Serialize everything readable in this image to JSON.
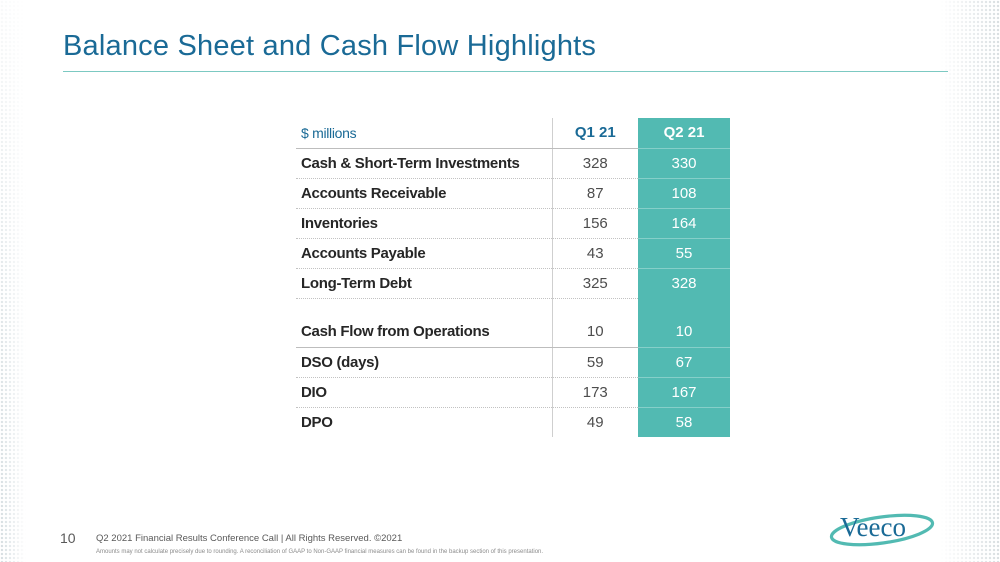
{
  "slide": {
    "title": "Balance Sheet and Cash Flow Highlights",
    "page_number": "10",
    "footer": "Q2 2021 Financial Results Conference Call  |  All Rights Reserved. ©2021",
    "footnote": "Amounts may not calculate precisely due to rounding.  A reconciliation of GAAP to Non-GAAP financial measures can be found in the backup section of this presentation.",
    "logo_text": "Veeco"
  },
  "table": {
    "unit_label": "$ millions",
    "columns": [
      "Q1 21",
      "Q2 21"
    ],
    "rows": [
      {
        "label": "Cash & Short-Term Investments",
        "q1": "328",
        "q2": "330"
      },
      {
        "label": "Accounts Receivable",
        "q1": "87",
        "q2": "108"
      },
      {
        "label": "Inventories",
        "q1": "156",
        "q2": "164"
      },
      {
        "label": "Accounts Payable",
        "q1": "43",
        "q2": "55"
      },
      {
        "label": "Long-Term Debt",
        "q1": "325",
        "q2": "328"
      },
      {
        "label": "Cash Flow from Operations",
        "q1": "10",
        "q2": "10"
      },
      {
        "label": "DSO (days)",
        "q1": "59",
        "q2": "67"
      },
      {
        "label": "DIO",
        "q1": "173",
        "q2": "167"
      },
      {
        "label": "DPO",
        "q1": "49",
        "q2": "58"
      }
    ]
  },
  "colors": {
    "title": "#1a6a96",
    "accent_teal": "#52bab2",
    "rule": "#7cc9c2",
    "logo_blue": "#1a6a96",
    "logo_teal": "#52bab2"
  }
}
